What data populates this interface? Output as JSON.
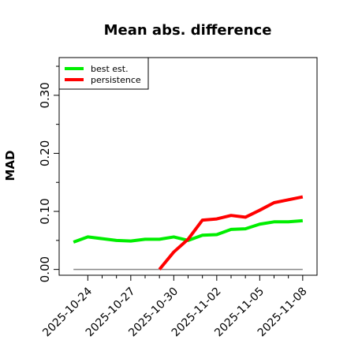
{
  "chart_data": {
    "type": "line",
    "title": "Mean abs. difference",
    "ylabel": "MAD",
    "xlabel": "",
    "ylim": [
      -0.01,
      0.365
    ],
    "xlim": [
      "2025-10-22",
      "2025-11-09"
    ],
    "grid": false,
    "legend_position": "top-left",
    "y_ticks": [
      "0.00",
      "0.10",
      "0.20",
      "0.30"
    ],
    "y_tick_values": [
      0,
      0.1,
      0.2,
      0.3
    ],
    "y_minor_ticks": [
      0.05,
      0.15,
      0.25,
      0.35
    ],
    "x_ticks": [
      "2025-10-24",
      "2025-10-27",
      "2025-10-30",
      "2025-11-02",
      "2025-11-05",
      "2025-11-08"
    ],
    "x_minor_ticks": [
      "2025-10-25",
      "2025-10-26",
      "2025-10-28",
      "2025-10-29",
      "2025-10-31",
      "2025-11-01",
      "2025-11-03",
      "2025-11-04",
      "2025-11-06",
      "2025-11-07"
    ],
    "baseline": {
      "x": [
        "2025-10-23",
        "2025-11-08"
      ],
      "y": [
        0,
        0
      ],
      "color": "#888888"
    },
    "series": [
      {
        "name": "best est.",
        "color": "#00ee00",
        "x": [
          "2025-10-23",
          "2025-10-24",
          "2025-10-25",
          "2025-10-26",
          "2025-10-27",
          "2025-10-28",
          "2025-10-29",
          "2025-10-30",
          "2025-10-31",
          "2025-11-01",
          "2025-11-02",
          "2025-11-03",
          "2025-11-04",
          "2025-11-05",
          "2025-11-06",
          "2025-11-07",
          "2025-11-08"
        ],
        "values": [
          0.047,
          0.056,
          0.053,
          0.05,
          0.049,
          0.052,
          0.052,
          0.056,
          0.05,
          0.059,
          0.06,
          0.069,
          0.07,
          0.078,
          0.082,
          0.082,
          0.084
        ]
      },
      {
        "name": "persistence",
        "color": "#ff0000",
        "x": [
          "2025-10-29",
          "2025-10-30",
          "2025-10-31",
          "2025-11-01",
          "2025-11-02",
          "2025-11-03",
          "2025-11-04",
          "2025-11-05",
          "2025-11-06",
          "2025-11-07",
          "2025-11-08"
        ],
        "values": [
          0.0,
          0.03,
          0.052,
          0.085,
          0.087,
          0.093,
          0.09,
          0.102,
          0.115,
          0.12,
          0.125
        ]
      }
    ]
  }
}
